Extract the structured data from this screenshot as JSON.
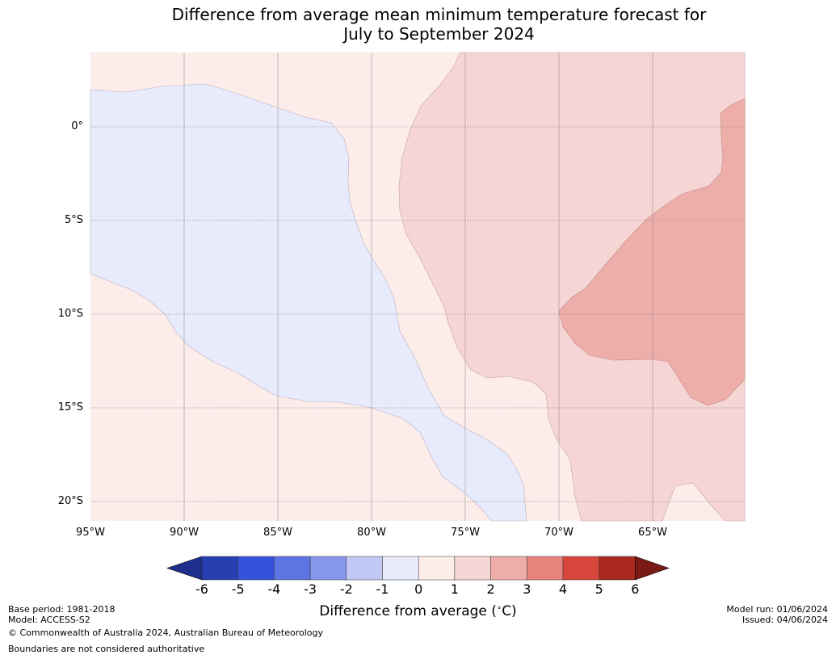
{
  "title_line1": "Difference from average mean minimum temperature forecast for",
  "title_line2": "July to September 2024",
  "lat_labels": [
    "0°",
    "5°S",
    "10°S",
    "15°S",
    "20°S"
  ],
  "lon_labels": [
    "95°W",
    "90°W",
    "85°W",
    "80°W",
    "75°W",
    "70°W",
    "65°W"
  ],
  "colorbar": {
    "title": "Difference from average ($^\\circ$C)",
    "title_display": "Difference from average (",
    "title_unit": "C)",
    "tick_labels": [
      "-6",
      "-5",
      "-4",
      "-3",
      "-2",
      "-1",
      "0",
      "1",
      "2",
      "3",
      "4",
      "5",
      "6"
    ],
    "colors": [
      "#1f2f8c",
      "#2640b2",
      "#3353dd",
      "#5d74e3",
      "#8697eb",
      "#c2c8f4",
      "#e8ebfb",
      "#fcecea",
      "#f5d6d4",
      "#edaeaa",
      "#e8837b",
      "#d9463b",
      "#a8281f",
      "#7a1a14"
    ]
  },
  "palette": {
    "neg_0_1": "#e8ebfb",
    "pos_0_1": "#fcecea",
    "pos_1_2": "#f5d6d4",
    "pos_2_3": "#edaeaa",
    "grid": "#777777"
  },
  "footer": {
    "base_period": "Base period: 1981-2018",
    "model": "Model: ACCESS-S2",
    "copyright": "© Commonwealth of Australia 2024, Australian Bureau of Meteorology",
    "boundaries": "Boundaries are not considered authoritative",
    "model_run": "Model run: 01/06/2024",
    "issued": "Issued: 04/06/2024"
  }
}
